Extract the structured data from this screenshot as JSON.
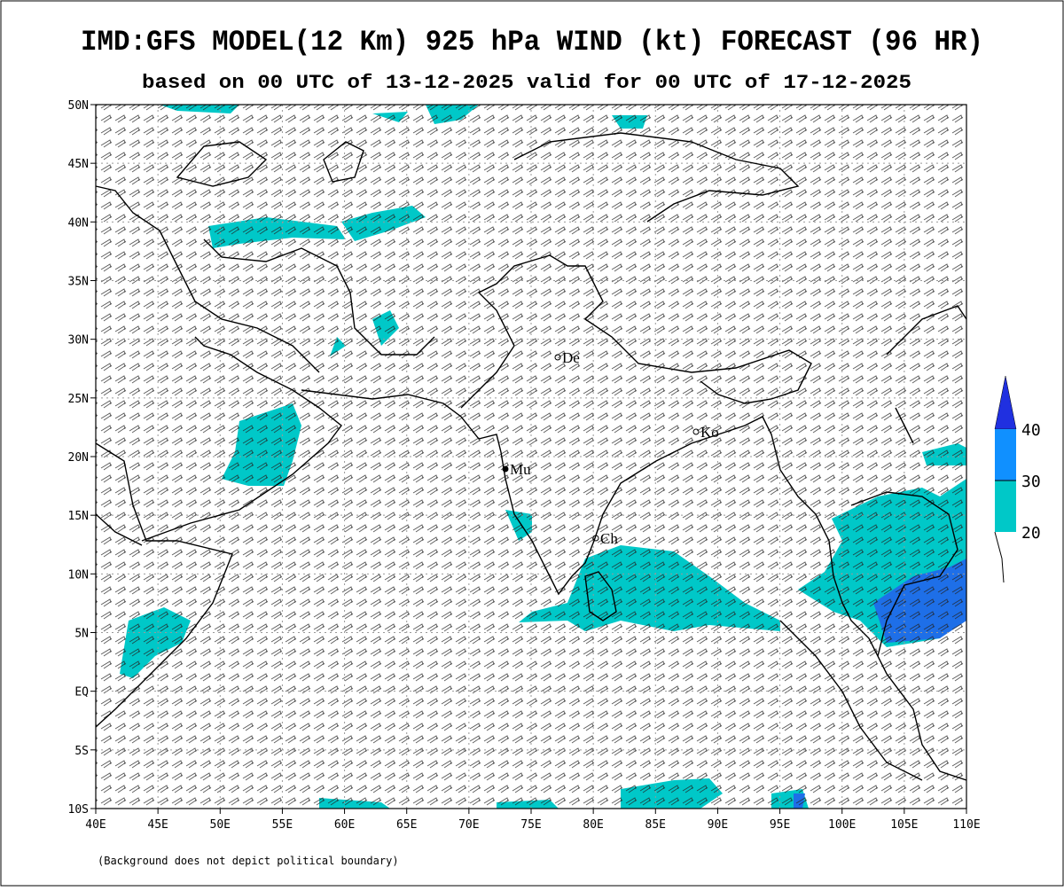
{
  "map": {
    "title": "IMD:GFS MODEL(12 Km) 925 hPa WIND (kt) FORECAST (96 HR)",
    "subtitle": "based on 00 UTC of 13-12-2025 valid for 00 UTC of 17-12-2025",
    "lat_labels": [
      "50N",
      "45N",
      "40N",
      "35N",
      "30N",
      "25N",
      "20N",
      "15N",
      "10N",
      "5N",
      "EQ",
      "5S",
      "10S"
    ],
    "lon_labels": [
      "40E",
      "45E",
      "50E",
      "55E",
      "60E",
      "65E",
      "70E",
      "75E",
      "80E",
      "85E",
      "90E",
      "95E",
      "100E",
      "105E",
      "110E"
    ],
    "cities": [
      "De",
      "Ko",
      "Mu",
      "Ch"
    ],
    "legend": [
      "40",
      "30",
      "20"
    ],
    "footnote": "(Background does not depict political boundary)"
  }
}
